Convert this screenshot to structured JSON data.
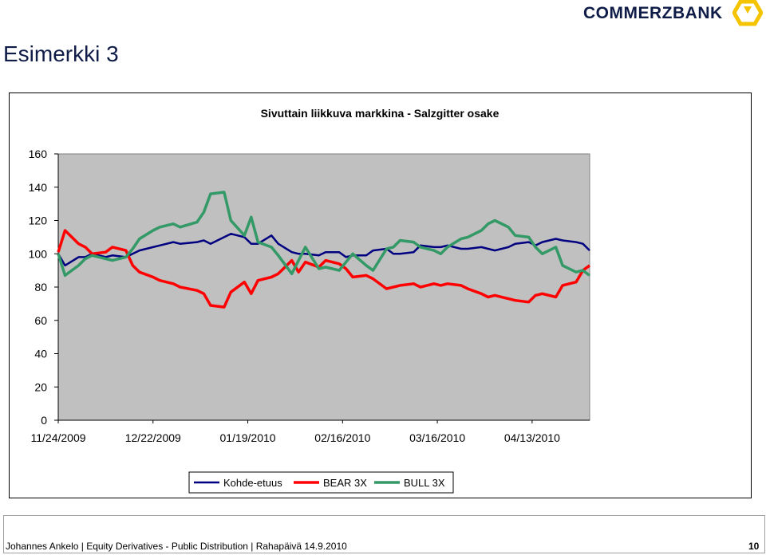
{
  "header": {
    "brand": "COMMERZBANK",
    "logo_icon": "commerzbank-ribbon-icon",
    "brand_color": "#0f1c47",
    "logo_color": "#f5c400"
  },
  "slide": {
    "title": "Esimerkki 3"
  },
  "footer": {
    "text": "Johannes Ankelo  |  Equity Derivatives - Public Distribution  |  Rahapäivä 14.9.2010",
    "page_number": "10"
  },
  "chart_data": {
    "type": "line",
    "title": "Sivuttain liikkuva markkina - Salzgitter osake",
    "xlabel": "",
    "ylabel": "",
    "ylim": [
      0,
      160
    ],
    "yticks": [
      "0",
      "20",
      "40",
      "60",
      "80",
      "100",
      "120",
      "140",
      "160"
    ],
    "x_tick_labels": [
      "11/24/2009",
      "12/22/2009",
      "01/19/2010",
      "02/16/2010",
      "03/16/2010",
      "04/13/2010"
    ],
    "x_range": [
      "11/24/2009",
      "04/30/2010"
    ],
    "plot_background": "#c0c0c0",
    "legend_position": "bottom",
    "series": [
      {
        "name": "Kohde-etuus",
        "color": "#000080",
        "x": [
          "11/24/2009",
          "11/26/2009",
          "11/30/2009",
          "12/02/2009",
          "12/04/2009",
          "12/08/2009",
          "12/10/2009",
          "12/14/2009",
          "12/16/2009",
          "12/18/2009",
          "12/22/2009",
          "12/24/2009",
          "12/28/2009",
          "12/30/2009",
          "01/04/2010",
          "01/06/2010",
          "01/08/2010",
          "01/12/2010",
          "01/14/2010",
          "01/18/2010",
          "01/20/2010",
          "01/22/2010",
          "01/26/2010",
          "01/28/2010",
          "02/01/2010",
          "02/03/2010",
          "02/05/2010",
          "02/09/2010",
          "02/11/2010",
          "02/15/2010",
          "02/17/2010",
          "02/19/2010",
          "02/23/2010",
          "02/25/2010",
          "03/01/2010",
          "03/03/2010",
          "03/05/2010",
          "03/09/2010",
          "03/11/2010",
          "03/15/2010",
          "03/17/2010",
          "03/19/2010",
          "03/23/2010",
          "03/25/2010",
          "03/29/2010",
          "03/31/2010",
          "04/02/2010",
          "04/06/2010",
          "04/08/2010",
          "04/12/2010",
          "04/14/2010",
          "04/16/2010",
          "04/20/2010",
          "04/22/2010",
          "04/26/2010",
          "04/28/2010",
          "04/30/2010"
        ],
        "values": [
          100,
          93,
          98,
          98,
          100,
          98,
          99,
          98,
          100,
          102,
          104,
          105,
          107,
          106,
          107,
          108,
          106,
          110,
          112,
          110,
          106,
          106,
          111,
          106,
          101,
          100,
          100,
          99,
          101,
          101,
          98,
          99,
          99,
          102,
          103,
          100,
          100,
          101,
          105,
          104,
          104,
          105,
          103,
          103,
          104,
          103,
          102,
          104,
          106,
          107,
          105,
          107,
          109,
          108,
          107,
          106,
          102
        ]
      },
      {
        "name": "BEAR 3X",
        "color": "#ff0000",
        "x": [
          "11/24/2009",
          "11/26/2009",
          "11/30/2009",
          "12/02/2009",
          "12/04/2009",
          "12/08/2009",
          "12/10/2009",
          "12/14/2009",
          "12/16/2009",
          "12/18/2009",
          "12/22/2009",
          "12/24/2009",
          "12/28/2009",
          "12/30/2009",
          "01/04/2010",
          "01/06/2010",
          "01/08/2010",
          "01/12/2010",
          "01/14/2010",
          "01/18/2010",
          "01/20/2010",
          "01/22/2010",
          "01/26/2010",
          "01/28/2010",
          "02/01/2010",
          "02/03/2010",
          "02/05/2010",
          "02/09/2010",
          "02/11/2010",
          "02/15/2010",
          "02/17/2010",
          "02/19/2010",
          "02/23/2010",
          "02/25/2010",
          "03/01/2010",
          "03/03/2010",
          "03/05/2010",
          "03/09/2010",
          "03/11/2010",
          "03/15/2010",
          "03/17/2010",
          "03/19/2010",
          "03/23/2010",
          "03/25/2010",
          "03/29/2010",
          "03/31/2010",
          "04/02/2010",
          "04/06/2010",
          "04/08/2010",
          "04/12/2010",
          "04/14/2010",
          "04/16/2010",
          "04/20/2010",
          "04/22/2010",
          "04/26/2010",
          "04/28/2010",
          "04/30/2010"
        ],
        "values": [
          101,
          114,
          106,
          104,
          100,
          101,
          104,
          102,
          93,
          89,
          86,
          84,
          82,
          80,
          78,
          76,
          69,
          68,
          77,
          83,
          76,
          84,
          86,
          88,
          96,
          89,
          95,
          92,
          96,
          94,
          91,
          86,
          87,
          85,
          79,
          80,
          81,
          82,
          80,
          82,
          81,
          82,
          81,
          79,
          76,
          74,
          75,
          73,
          72,
          71,
          75,
          76,
          74,
          81,
          83,
          90,
          93
        ]
      },
      {
        "name": "BULL 3X",
        "color": "#339966",
        "x": [
          "11/24/2009",
          "11/26/2009",
          "11/30/2009",
          "12/02/2009",
          "12/04/2009",
          "12/08/2009",
          "12/10/2009",
          "12/14/2009",
          "12/16/2009",
          "12/18/2009",
          "12/22/2009",
          "12/24/2009",
          "12/28/2009",
          "12/30/2009",
          "01/04/2010",
          "01/06/2010",
          "01/08/2010",
          "01/12/2010",
          "01/14/2010",
          "01/18/2010",
          "01/20/2010",
          "01/22/2010",
          "01/26/2010",
          "01/28/2010",
          "02/01/2010",
          "02/03/2010",
          "02/05/2010",
          "02/09/2010",
          "02/11/2010",
          "02/15/2010",
          "02/17/2010",
          "02/19/2010",
          "02/23/2010",
          "02/25/2010",
          "03/01/2010",
          "03/03/2010",
          "03/05/2010",
          "03/09/2010",
          "03/11/2010",
          "03/15/2010",
          "03/17/2010",
          "03/19/2010",
          "03/23/2010",
          "03/25/2010",
          "03/29/2010",
          "03/31/2010",
          "04/02/2010",
          "04/06/2010",
          "04/08/2010",
          "04/12/2010",
          "04/14/2010",
          "04/16/2010",
          "04/20/2010",
          "04/22/2010",
          "04/26/2010",
          "04/28/2010",
          "04/30/2010"
        ],
        "values": [
          100,
          87,
          93,
          97,
          99,
          97,
          96,
          98,
          103,
          109,
          114,
          116,
          118,
          116,
          119,
          125,
          136,
          137,
          120,
          111,
          122,
          107,
          104,
          99,
          88,
          96,
          104,
          91,
          92,
          90,
          95,
          100,
          93,
          90,
          103,
          104,
          108,
          107,
          104,
          102,
          100,
          104,
          109,
          110,
          114,
          118,
          120,
          116,
          111,
          110,
          104,
          100,
          104,
          93,
          89,
          90,
          87
        ]
      }
    ]
  }
}
